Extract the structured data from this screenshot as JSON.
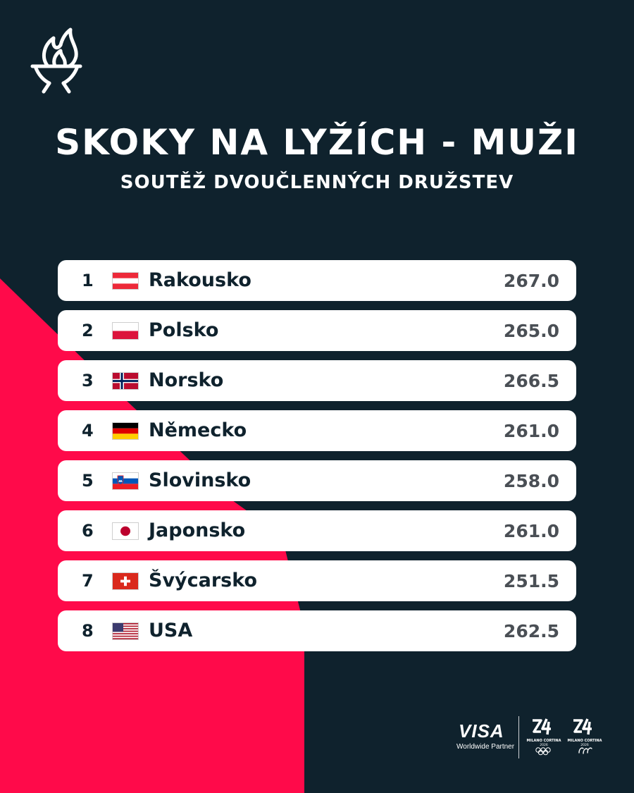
{
  "colors": {
    "background": "#0f222d",
    "accent": "#ff0a4a",
    "card": "#ffffff",
    "text_dark": "#0f222d",
    "score_text": "#4a4f55"
  },
  "header": {
    "icon": "torch-icon",
    "title": "SKOKY NA LYŽÍCH - MUŽI",
    "subtitle": "SOUTĚŽ DVOUČLENNÝCH DRUŽSTEV"
  },
  "results": [
    {
      "rank": "1",
      "flag": "austria-flag-icon",
      "country": "Rakousko",
      "score": "267.0"
    },
    {
      "rank": "2",
      "flag": "poland-flag-icon",
      "country": "Polsko",
      "score": "265.0"
    },
    {
      "rank": "3",
      "flag": "norway-flag-icon",
      "country": "Norsko",
      "score": "266.5"
    },
    {
      "rank": "4",
      "flag": "germany-flag-icon",
      "country": "Německo",
      "score": "261.0"
    },
    {
      "rank": "5",
      "flag": "slovenia-flag-icon",
      "country": "Slovinsko",
      "score": "258.0"
    },
    {
      "rank": "6",
      "flag": "japan-flag-icon",
      "country": "Japonsko",
      "score": "261.0"
    },
    {
      "rank": "7",
      "flag": "switzerland-flag-icon",
      "country": "Švýcarsko",
      "score": "251.5"
    },
    {
      "rank": "8",
      "flag": "usa-flag-icon",
      "country": "USA",
      "score": "262.5"
    }
  ],
  "footer": {
    "sponsor_name": "VISA",
    "sponsor_tagline": "Worldwide Partner",
    "logos": [
      "milano-cortina-olympic-logo",
      "milano-cortina-paralympic-logo"
    ],
    "logo_text": "MILANO CORTINA",
    "logo_year": "2026"
  }
}
